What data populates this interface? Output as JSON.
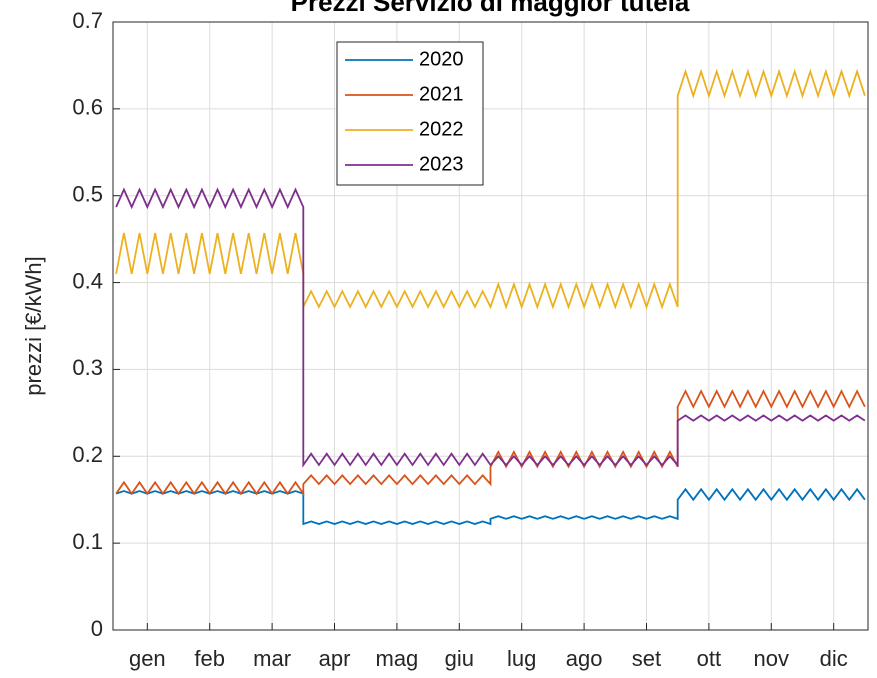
{
  "chart_data": {
    "type": "line",
    "title": "Prezzi Servizio di maggior tutela",
    "ylabel": "prezzi [€/kWh]",
    "x": [
      0.5,
      0.625,
      0.75,
      0.875,
      1,
      1.125,
      1.25,
      1.375,
      1.5,
      1.625,
      1.75,
      1.875,
      2,
      2.125,
      2.25,
      2.375,
      2.5,
      2.625,
      2.75,
      2.875,
      3,
      3.125,
      3.25,
      3.375,
      3.5,
      3.5,
      3.625,
      3.75,
      3.875,
      4,
      4.125,
      4.25,
      4.375,
      4.5,
      4.625,
      4.75,
      4.875,
      5,
      5.125,
      5.25,
      5.375,
      5.5,
      5.625,
      5.75,
      5.875,
      6,
      6.125,
      6.25,
      6.375,
      6.5,
      6.5,
      6.625,
      6.75,
      6.875,
      7,
      7.125,
      7.25,
      7.375,
      7.5,
      7.625,
      7.75,
      7.875,
      8,
      8.125,
      8.25,
      8.375,
      8.5,
      8.625,
      8.75,
      8.875,
      9,
      9.125,
      9.25,
      9.375,
      9.5,
      9.5,
      9.625,
      9.75,
      9.875,
      10,
      10.125,
      10.25,
      10.375,
      10.5,
      10.625,
      10.75,
      10.875,
      11,
      11.125,
      11.25,
      11.375,
      11.5,
      11.625,
      11.75,
      11.875,
      12,
      12.125,
      12.25,
      12.375,
      12.5
    ],
    "series": [
      {
        "name": "2020",
        "color": "#0072bd",
        "values": [
          0.157,
          0.16,
          0.157,
          0.16,
          0.157,
          0.16,
          0.157,
          0.16,
          0.157,
          0.16,
          0.157,
          0.16,
          0.157,
          0.16,
          0.157,
          0.16,
          0.157,
          0.16,
          0.157,
          0.16,
          0.157,
          0.16,
          0.157,
          0.16,
          0.157,
          0.122,
          0.125,
          0.122,
          0.125,
          0.122,
          0.125,
          0.122,
          0.125,
          0.122,
          0.125,
          0.122,
          0.125,
          0.122,
          0.125,
          0.122,
          0.125,
          0.122,
          0.125,
          0.122,
          0.125,
          0.122,
          0.125,
          0.122,
          0.125,
          0.122,
          0.128,
          0.131,
          0.128,
          0.131,
          0.128,
          0.131,
          0.128,
          0.131,
          0.128,
          0.131,
          0.128,
          0.131,
          0.128,
          0.131,
          0.128,
          0.131,
          0.128,
          0.131,
          0.128,
          0.131,
          0.128,
          0.131,
          0.128,
          0.131,
          0.128,
          0.15,
          0.162,
          0.15,
          0.162,
          0.15,
          0.162,
          0.15,
          0.162,
          0.15,
          0.162,
          0.15,
          0.162,
          0.15,
          0.162,
          0.15,
          0.162,
          0.15,
          0.162,
          0.15,
          0.162,
          0.15,
          0.162,
          0.15,
          0.162,
          0.15
        ]
      },
      {
        "name": "2021",
        "color": "#d95319",
        "values": [
          0.157,
          0.17,
          0.157,
          0.17,
          0.157,
          0.17,
          0.157,
          0.17,
          0.157,
          0.17,
          0.157,
          0.17,
          0.157,
          0.17,
          0.157,
          0.17,
          0.157,
          0.17,
          0.157,
          0.17,
          0.157,
          0.17,
          0.157,
          0.17,
          0.157,
          0.168,
          0.178,
          0.168,
          0.178,
          0.168,
          0.178,
          0.168,
          0.178,
          0.168,
          0.178,
          0.168,
          0.178,
          0.168,
          0.178,
          0.168,
          0.178,
          0.168,
          0.178,
          0.168,
          0.178,
          0.168,
          0.178,
          0.168,
          0.178,
          0.168,
          0.188,
          0.205,
          0.188,
          0.205,
          0.188,
          0.205,
          0.188,
          0.205,
          0.188,
          0.205,
          0.188,
          0.205,
          0.188,
          0.205,
          0.188,
          0.205,
          0.188,
          0.205,
          0.188,
          0.205,
          0.188,
          0.205,
          0.188,
          0.205,
          0.188,
          0.257,
          0.275,
          0.257,
          0.275,
          0.257,
          0.275,
          0.257,
          0.275,
          0.257,
          0.275,
          0.257,
          0.275,
          0.257,
          0.275,
          0.257,
          0.275,
          0.257,
          0.275,
          0.257,
          0.275,
          0.257,
          0.275,
          0.257,
          0.275,
          0.257
        ]
      },
      {
        "name": "2022",
        "color": "#edb120",
        "values": [
          0.41,
          0.457,
          0.41,
          0.457,
          0.41,
          0.457,
          0.41,
          0.457,
          0.41,
          0.457,
          0.41,
          0.457,
          0.41,
          0.457,
          0.41,
          0.457,
          0.41,
          0.457,
          0.41,
          0.457,
          0.41,
          0.457,
          0.41,
          0.457,
          0.41,
          0.372,
          0.39,
          0.372,
          0.39,
          0.372,
          0.39,
          0.372,
          0.39,
          0.372,
          0.39,
          0.372,
          0.39,
          0.372,
          0.39,
          0.372,
          0.39,
          0.372,
          0.39,
          0.372,
          0.39,
          0.372,
          0.39,
          0.372,
          0.39,
          0.372,
          0.372,
          0.398,
          0.372,
          0.398,
          0.372,
          0.398,
          0.372,
          0.398,
          0.372,
          0.398,
          0.372,
          0.398,
          0.372,
          0.398,
          0.372,
          0.398,
          0.372,
          0.398,
          0.372,
          0.398,
          0.372,
          0.398,
          0.372,
          0.398,
          0.372,
          0.615,
          0.643,
          0.615,
          0.643,
          0.615,
          0.643,
          0.615,
          0.643,
          0.615,
          0.643,
          0.615,
          0.643,
          0.615,
          0.643,
          0.615,
          0.643,
          0.615,
          0.643,
          0.615,
          0.643,
          0.615,
          0.643,
          0.615,
          0.643,
          0.615
        ]
      },
      {
        "name": "2023",
        "color": "#7e2f8e",
        "values": [
          0.487,
          0.507,
          0.487,
          0.507,
          0.487,
          0.507,
          0.487,
          0.507,
          0.487,
          0.507,
          0.487,
          0.507,
          0.487,
          0.507,
          0.487,
          0.507,
          0.487,
          0.507,
          0.487,
          0.507,
          0.487,
          0.507,
          0.487,
          0.507,
          0.487,
          0.19,
          0.203,
          0.19,
          0.203,
          0.19,
          0.203,
          0.19,
          0.203,
          0.19,
          0.203,
          0.19,
          0.203,
          0.19,
          0.203,
          0.19,
          0.203,
          0.19,
          0.203,
          0.19,
          0.203,
          0.19,
          0.203,
          0.19,
          0.203,
          0.19,
          0.19,
          0.2,
          0.19,
          0.2,
          0.19,
          0.2,
          0.19,
          0.2,
          0.19,
          0.2,
          0.19,
          0.2,
          0.19,
          0.2,
          0.19,
          0.2,
          0.19,
          0.2,
          0.19,
          0.2,
          0.19,
          0.2,
          0.19,
          0.2,
          0.19,
          0.241,
          0.247,
          0.241,
          0.247,
          0.241,
          0.247,
          0.241,
          0.247,
          0.241,
          0.247,
          0.241,
          0.247,
          0.241,
          0.247,
          0.241,
          0.247,
          0.241,
          0.247,
          0.241,
          0.247,
          0.241,
          0.247,
          0.241,
          0.247,
          0.241
        ]
      }
    ],
    "xlim": [
      0.45,
      12.55
    ],
    "xticks": [
      {
        "value": 1,
        "label": "gen"
      },
      {
        "value": 2,
        "label": "feb"
      },
      {
        "value": 3,
        "label": "mar"
      },
      {
        "value": 4,
        "label": "apr"
      },
      {
        "value": 5,
        "label": "mag"
      },
      {
        "value": 6,
        "label": "giu"
      },
      {
        "value": 7,
        "label": "lug"
      },
      {
        "value": 8,
        "label": "ago"
      },
      {
        "value": 9,
        "label": "set"
      },
      {
        "value": 10,
        "label": "ott"
      },
      {
        "value": 11,
        "label": "nov"
      },
      {
        "value": 12,
        "label": "dic"
      }
    ],
    "ylim": [
      0,
      0.7
    ],
    "yticks": [
      0,
      0.1,
      0.2,
      0.3,
      0.4,
      0.5,
      0.6,
      0.7
    ],
    "grid": true,
    "legend": "north"
  }
}
